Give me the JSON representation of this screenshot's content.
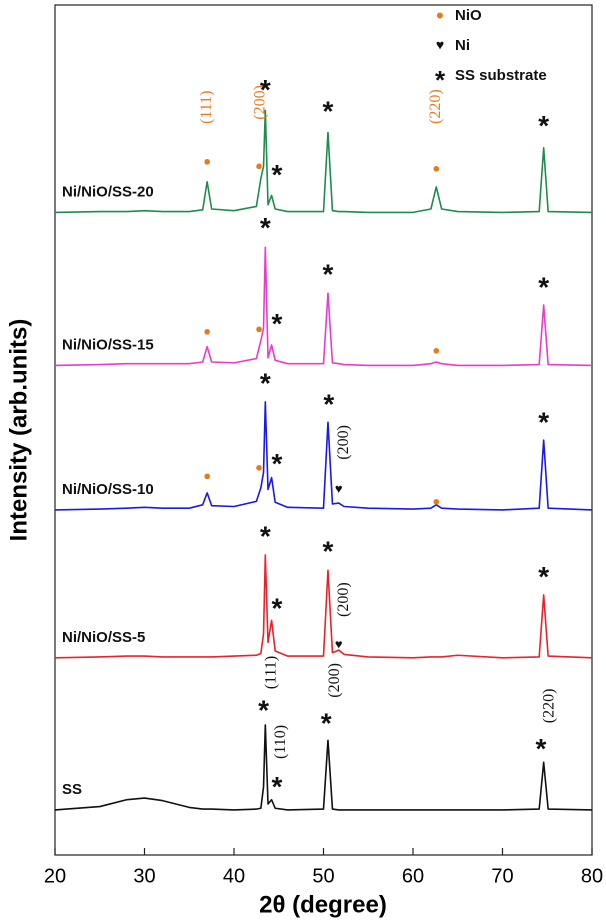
{
  "chart_data": {
    "type": "line",
    "x_label": "2θ (degree)",
    "y_label": "Intensity (arb.units)",
    "xlim": [
      20,
      80
    ],
    "xticks": [
      20,
      30,
      40,
      50,
      60,
      70,
      80
    ],
    "ylim": [
      0,
      100
    ],
    "x": [
      20,
      25,
      28,
      30,
      32,
      35,
      36.5,
      37,
      37.5,
      40,
      42.5,
      43,
      43.3,
      43.5,
      43.8,
      44.2,
      44.6,
      46,
      50,
      50.5,
      51,
      51.7,
      52.3,
      55,
      60,
      62,
      62.6,
      63.2,
      65,
      70,
      74.1,
      74.6,
      75.1,
      80
    ],
    "series": [
      {
        "name": "Ni/NiO/SS-20",
        "color": "#1e8c4e",
        "values": [
          75.6,
          75.7,
          75.7,
          75.8,
          75.7,
          75.7,
          75.9,
          79.2,
          76,
          75.8,
          76.3,
          79.6,
          81,
          87.6,
          76.5,
          77.6,
          76,
          75.7,
          75.7,
          85,
          75.8,
          75.7,
          75.7,
          75.6,
          75.6,
          76,
          78.6,
          76,
          75.7,
          75.6,
          75.7,
          83.2,
          75.7,
          75.6
        ]
      },
      {
        "name": "Ni/NiO/SS-15",
        "color": "#e83ccf",
        "values": [
          57.6,
          57.7,
          57.8,
          57.8,
          57.8,
          57.8,
          58,
          59.8,
          58,
          57.9,
          58.4,
          60.5,
          62,
          71.5,
          58.5,
          60,
          58.2,
          57.8,
          57.8,
          66.1,
          57.9,
          57.8,
          57.7,
          57.6,
          57.6,
          57.8,
          58,
          57.8,
          57.6,
          57.6,
          57.7,
          64.7,
          57.7,
          57.6
        ]
      },
      {
        "name": "Ni/NiO/SS-10",
        "color": "#1a1ae6",
        "values": [
          40.6,
          40.7,
          40.8,
          40.9,
          40.8,
          40.8,
          41.2,
          42.6,
          41.1,
          41,
          41.6,
          43.2,
          45,
          53.3,
          43,
          44.4,
          41.5,
          40.9,
          40.8,
          50.9,
          41.3,
          41.4,
          41,
          40.8,
          40.7,
          40.8,
          41.2,
          40.8,
          40.7,
          40.6,
          40.8,
          48.8,
          40.8,
          40.6
        ]
      },
      {
        "name": "Ni/NiO/SS-5",
        "color": "#e8232a",
        "values": [
          23.2,
          23.3,
          23.4,
          23.4,
          23.3,
          23.3,
          23.3,
          23.3,
          23.3,
          23.4,
          23.5,
          23.7,
          26,
          35.3,
          25,
          27.6,
          24,
          23.4,
          23.4,
          33.5,
          23.8,
          24.1,
          23.6,
          23.3,
          23.2,
          23.3,
          23.3,
          23.3,
          23.5,
          23.2,
          23.3,
          30.6,
          23.4,
          23.2
        ]
      },
      {
        "name": "SS",
        "color": "#111111",
        "values": [
          5.3,
          5.7,
          6.5,
          6.7,
          6.4,
          5.6,
          5.4,
          5.4,
          5.4,
          5.3,
          5.4,
          5.5,
          8,
          15.3,
          6,
          6.5,
          5.5,
          5.3,
          5.4,
          13.5,
          5.4,
          5.3,
          5.3,
          5.3,
          5.3,
          5.3,
          5.3,
          5.3,
          5.3,
          5.3,
          5.4,
          10.9,
          5.4,
          5.3
        ]
      }
    ],
    "marker_legend": [
      {
        "symbol": "●",
        "label": "NiO",
        "color": "#e87a1e"
      },
      {
        "symbol": "♥",
        "label": "Ni",
        "color": "#111111"
      },
      {
        "symbol": "*",
        "label": "SS substrate",
        "color": "#111111"
      }
    ],
    "annotations": [
      {
        "text": "●",
        "x": 37,
        "y": 81.5,
        "color": "#e87a1e"
      },
      {
        "text": "●",
        "x": 42.8,
        "y": 81,
        "color": "#e87a1e"
      },
      {
        "text": "●",
        "x": 62.6,
        "y": 80.7,
        "color": "#e87a1e"
      },
      {
        "text": "(111)",
        "x": 37,
        "y": 86,
        "color": "#e87a1e"
      },
      {
        "text": "(200)",
        "x": 43,
        "y": 86.5,
        "color": "#e87a1e"
      },
      {
        "text": "(220)",
        "x": 62.6,
        "y": 86,
        "color": "#e87a1e"
      },
      {
        "text": "*",
        "x": 43.5,
        "y": 90.5,
        "color": "#111111"
      },
      {
        "text": "*",
        "x": 44.8,
        "y": 80.5,
        "color": "#111111"
      },
      {
        "text": "*",
        "x": 50.5,
        "y": 88,
        "color": "#111111"
      },
      {
        "text": "*",
        "x": 74.6,
        "y": 86.3,
        "color": "#111111"
      },
      {
        "text": "●",
        "x": 37,
        "y": 61.5,
        "color": "#e87a1e"
      },
      {
        "text": "●",
        "x": 42.8,
        "y": 61.8,
        "color": "#e87a1e"
      },
      {
        "text": "●",
        "x": 62.6,
        "y": 59.3,
        "color": "#e87a1e"
      },
      {
        "text": "*",
        "x": 43.5,
        "y": 74.3,
        "color": "#111111"
      },
      {
        "text": "*",
        "x": 44.8,
        "y": 63,
        "color": "#111111"
      },
      {
        "text": "*",
        "x": 50.5,
        "y": 68.8,
        "color": "#111111"
      },
      {
        "text": "*",
        "x": 74.6,
        "y": 67.3,
        "color": "#111111"
      },
      {
        "text": "●",
        "x": 37,
        "y": 44.5,
        "color": "#e87a1e"
      },
      {
        "text": "●",
        "x": 42.8,
        "y": 45.5,
        "color": "#e87a1e"
      },
      {
        "text": "●",
        "x": 62.6,
        "y": 41.5,
        "color": "#e87a1e"
      },
      {
        "text": "*",
        "x": 43.5,
        "y": 56,
        "color": "#111111"
      },
      {
        "text": "*",
        "x": 44.8,
        "y": 46.5,
        "color": "#111111"
      },
      {
        "text": "*",
        "x": 50.6,
        "y": 53.5,
        "color": "#111111"
      },
      {
        "text": "*",
        "x": 74.6,
        "y": 51.4,
        "color": "#111111"
      },
      {
        "text": "♥",
        "x": 51.7,
        "y": 43,
        "color": "#111111"
      },
      {
        "text": "(200)",
        "x": 52.3,
        "y": 46.5,
        "color": "#111111"
      },
      {
        "text": "*",
        "x": 43.5,
        "y": 38,
        "color": "#111111"
      },
      {
        "text": "*",
        "x": 44.8,
        "y": 29.5,
        "color": "#111111"
      },
      {
        "text": "*",
        "x": 50.5,
        "y": 36.2,
        "color": "#111111"
      },
      {
        "text": "*",
        "x": 74.6,
        "y": 33.2,
        "color": "#111111"
      },
      {
        "text": "♥",
        "x": 51.7,
        "y": 24.7,
        "color": "#111111"
      },
      {
        "text": "(200)",
        "x": 52.3,
        "y": 28,
        "color": "#111111"
      },
      {
        "text": "*",
        "x": 43.3,
        "y": 17.5,
        "color": "#111111"
      },
      {
        "text": "(111)",
        "x": 44.2,
        "y": 19.5,
        "color": "#111111"
      },
      {
        "text": "*",
        "x": 44.8,
        "y": 8.5,
        "color": "#111111"
      },
      {
        "text": "(110)",
        "x": 45.3,
        "y": 11.3,
        "color": "#111111"
      },
      {
        "text": "*",
        "x": 50.3,
        "y": 16,
        "color": "#111111"
      },
      {
        "text": "(200)",
        "x": 51.3,
        "y": 18.5,
        "color": "#111111"
      },
      {
        "text": "*",
        "x": 74.3,
        "y": 13,
        "color": "#111111"
      },
      {
        "text": "(220)",
        "x": 75.3,
        "y": 15.5,
        "color": "#111111"
      }
    ]
  }
}
